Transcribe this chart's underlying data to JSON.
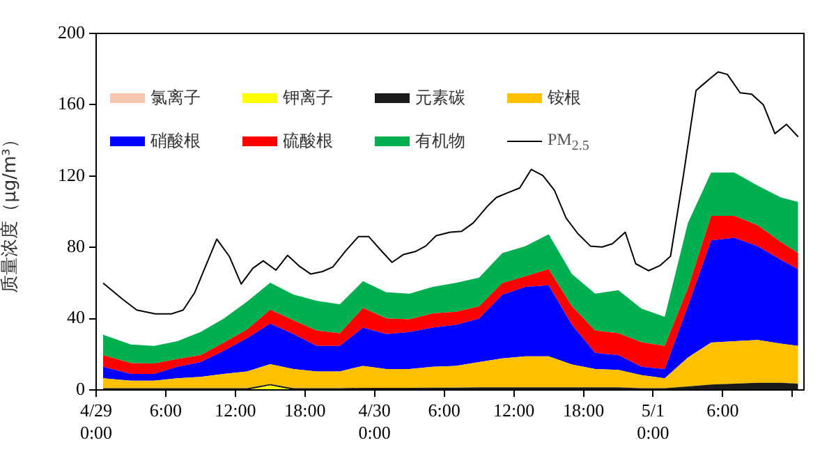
{
  "chart_data": {
    "type": "area",
    "stacked": true,
    "ylabel": "质量浓度（μg/m³）",
    "legend": "top",
    "grid": false,
    "marker": "none",
    "xlim": [
      "--04-29T00:00",
      "--05-01T13:00"
    ],
    "xticks": [
      {
        "value": "--04-29T00:00",
        "label": "4/29\n0:00"
      },
      {
        "value": "--04-29T06:00",
        "label": "6:00"
      },
      {
        "value": "--04-29T12:00",
        "label": "12:00"
      },
      {
        "value": "--04-29T18:00",
        "label": "18:00"
      },
      {
        "value": "--04-30T00:00",
        "label": "4/30\n0:00"
      },
      {
        "value": "--04-30T06:00",
        "label": "6:00"
      },
      {
        "value": "--04-30T12:00",
        "label": "12:00"
      },
      {
        "value": "--04-30T18:00",
        "label": "18:00"
      },
      {
        "value": "--05-01T00:00",
        "label": "5/1\n0:00"
      },
      {
        "value": "--05-01T06:00",
        "label": "6:00"
      },
      {
        "value": "--05-01T12:00",
        "label": null
      }
    ],
    "ylim": [
      0,
      200
    ],
    "yticks": [
      0,
      40,
      80,
      120,
      160,
      200
    ],
    "x": [
      "--04-29T00:36",
      "--04-29T03:00",
      "--04-29T05:00",
      "--04-29T07:00",
      "--04-29T09:00",
      "--04-29T11:00",
      "--04-29T13:00",
      "--04-29T15:00",
      "--04-29T17:00",
      "--04-29T19:00",
      "--04-29T21:00",
      "--04-29T23:00",
      "--04-30T01:00",
      "--04-30T03:00",
      "--04-30T05:00",
      "--04-30T07:00",
      "--04-30T09:00",
      "--04-30T11:00",
      "--04-30T13:00",
      "--04-30T15:00",
      "--04-30T17:00",
      "--04-30T19:00",
      "--04-30T21:00",
      "--04-30T23:00",
      "--05-01T01:00",
      "--05-01T03:00",
      "--05-01T05:00",
      "--05-01T07:00",
      "--05-01T09:00",
      "--05-01T11:00",
      "--05-01T12:30"
    ],
    "series": [
      {
        "name": "氯离子",
        "color": "#f4c7ae",
        "values": [
          null,
          null,
          null,
          null,
          null,
          null,
          null,
          null,
          null,
          null,
          null,
          null,
          null,
          null,
          null,
          null,
          null,
          null,
          null,
          null,
          null,
          null,
          null,
          null,
          null,
          null,
          null,
          null,
          null,
          null,
          null
        ]
      },
      {
        "name": "钾离子",
        "color": "#ffff00",
        "values": [
          0,
          0,
          0,
          0,
          0,
          0,
          0,
          2.5,
          0,
          0,
          0,
          0,
          0,
          0,
          0,
          0,
          0,
          0,
          0,
          0,
          0,
          0,
          0,
          0,
          0,
          0,
          0,
          0,
          0,
          0,
          0
        ]
      },
      {
        "name": "元素碳",
        "color": "#1a1a1a",
        "values": [
          1,
          1,
          1,
          1,
          1,
          1,
          1,
          0.8,
          1,
          1,
          1,
          1.2,
          1.2,
          1.2,
          1.3,
          1.3,
          1.5,
          1.5,
          1.5,
          1.5,
          1.5,
          1.5,
          1.5,
          1,
          1,
          2,
          3,
          3.5,
          4,
          4,
          3.5
        ]
      },
      {
        "name": "铵根",
        "color": "#ffc000",
        "values": [
          5.5,
          4.2,
          4.2,
          5.5,
          6.3,
          8,
          9.4,
          11.2,
          10.7,
          9.4,
          9.4,
          12.3,
          10.5,
          10.5,
          11.7,
          12.2,
          14.1,
          16.2,
          17.3,
          17.3,
          12.8,
          10.2,
          9.7,
          7.3,
          5.5,
          16.2,
          23.6,
          23.8,
          24,
          22,
          21.2
        ]
      },
      {
        "name": "硝酸根",
        "color": "#0000ff",
        "values": [
          6.5,
          3.8,
          3.8,
          6.5,
          8.3,
          13,
          18.6,
          22.7,
          19.6,
          14.3,
          14.3,
          21.5,
          19.6,
          20.8,
          22,
          23,
          24.4,
          35.7,
          39,
          39.9,
          22.2,
          9.1,
          8.3,
          4.7,
          5.2,
          28.8,
          57.3,
          58.1,
          52.7,
          47,
          43
        ]
      },
      {
        "name": "硫酸根",
        "color": "#ff0000",
        "values": [
          6.5,
          6,
          5.8,
          4.4,
          3.9,
          4.6,
          4.9,
          7.8,
          7.8,
          8.6,
          7.1,
          11,
          8.8,
          7.1,
          8,
          7.3,
          6.9,
          6.6,
          6,
          9.1,
          10.5,
          12.5,
          12.3,
          13.8,
          13,
          10,
          13.8,
          12.3,
          11.7,
          10,
          9.1
        ]
      },
      {
        "name": "有机物",
        "color": "#00b050",
        "values": [
          11.5,
          10.5,
          9.9,
          9.9,
          13,
          13.4,
          15.6,
          15.2,
          14.4,
          16.7,
          16.2,
          15,
          14.7,
          14.4,
          14.8,
          16.3,
          16.1,
          16.8,
          16.9,
          19.5,
          18,
          20.7,
          24.2,
          18.8,
          16.3,
          36.7,
          24.3,
          24.3,
          22.2,
          25,
          28.7
        ]
      },
      {
        "name": "PM$_{2.5}$",
        "type": "line",
        "color": "#000000",
        "x": [
          "--04-29T00:36",
          "--04-29T02:18",
          "--04-29T03:30",
          "--04-29T05:06",
          "--04-29T06:30",
          "--04-29T07:30",
          "--04-29T08:30",
          "--04-29T10:24",
          "--04-29T11:30",
          "--04-29T12:30",
          "--04-29T13:30",
          "--04-29T14:24",
          "--04-29T15:30",
          "--04-29T16:30",
          "--04-29T17:30",
          "--04-29T18:30",
          "--04-29T19:30",
          "--04-29T20:24",
          "--04-29T21:30",
          "--04-29T22:36",
          "--04-29T23:30",
          "--04-30T00:30",
          "--04-30T01:30",
          "--04-30T02:30",
          "--04-30T03:30",
          "--04-30T04:24",
          "--04-30T05:18",
          "--04-30T06:30",
          "--04-30T07:30",
          "--04-30T08:30",
          "--04-30T09:42",
          "--04-30T10:30",
          "--04-30T11:30",
          "--04-30T12:30",
          "--04-30T13:30",
          "--04-30T14:30",
          "--04-30T15:30",
          "--04-30T16:30",
          "--04-30T17:30",
          "--04-30T18:36",
          "--04-30T19:36",
          "--04-30T20:30",
          "--04-30T21:36",
          "--04-30T22:30",
          "--04-30T23:36",
          "--05-01T00:36",
          "--05-01T01:30",
          "--05-01T02:36",
          "--05-01T03:42",
          "--05-01T04:36",
          "--05-01T05:36",
          "--05-01T06:24",
          "--05-01T07:30",
          "--05-01T08:30",
          "--05-01T09:30",
          "--05-01T10:30",
          "--05-01T11:30",
          "--05-01T12:30"
        ],
        "values": [
          60,
          50.8,
          44.8,
          42.7,
          42.7,
          44.8,
          54.7,
          84.6,
          74.7,
          59.4,
          68.2,
          72.4,
          67.2,
          75.5,
          69.5,
          65,
          66.4,
          69,
          78,
          86,
          86,
          78.6,
          71.6,
          76,
          77.6,
          80.7,
          86.5,
          88.5,
          89,
          93.7,
          102.9,
          108,
          110.7,
          113.3,
          123.7,
          120.3,
          112,
          96.4,
          87.8,
          80.7,
          80.2,
          82,
          88.5,
          70.8,
          66.9,
          69.8,
          75,
          119.8,
          168,
          173,
          178.4,
          177,
          166.7,
          165.9,
          160,
          143.8,
          149,
          142
        ]
      }
    ]
  }
}
